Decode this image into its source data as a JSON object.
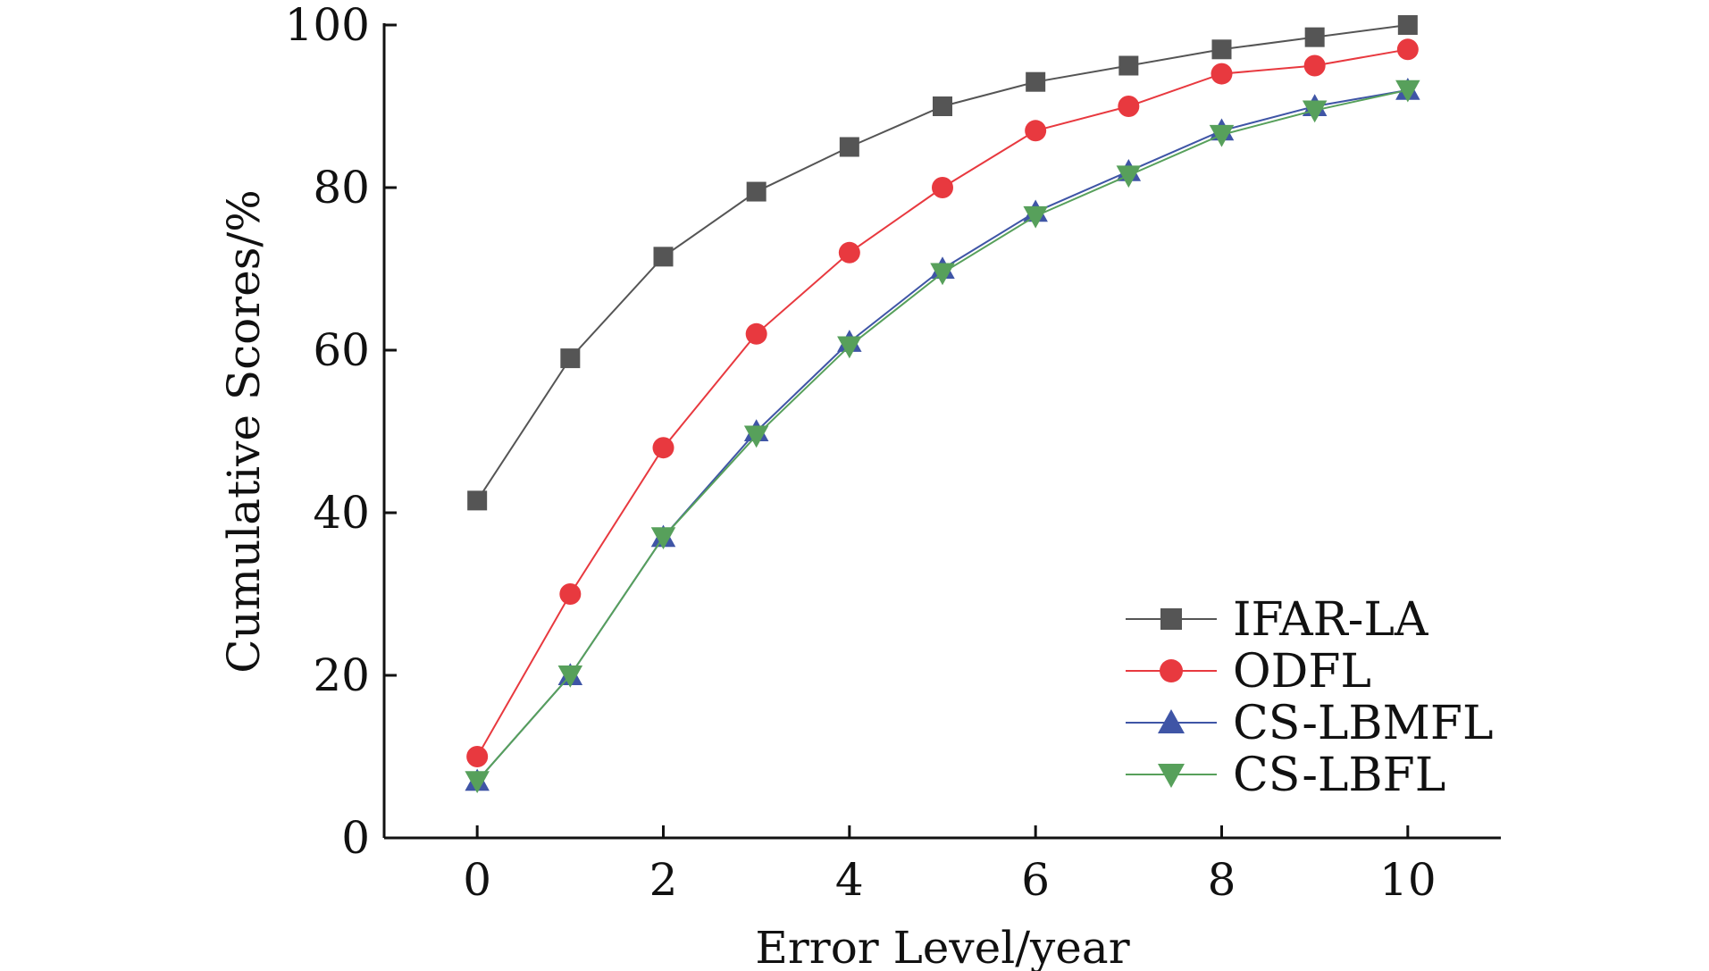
{
  "chart_data": {
    "type": "line",
    "title": "",
    "xlabel": "Error Level/year",
    "ylabel": "Cumulative Scores/%",
    "xlim": [
      -1,
      11
    ],
    "ylim": [
      0,
      100
    ],
    "xticks": [
      "0",
      "2",
      "4",
      "6",
      "8",
      "10"
    ],
    "yticks": [
      "0",
      "20",
      "40",
      "60",
      "80",
      "100"
    ],
    "x": [
      0,
      1,
      2,
      3,
      4,
      5,
      6,
      7,
      8,
      9,
      10
    ],
    "grid": false,
    "legend_position": "bottom-right",
    "series": [
      {
        "name": "IFAR-LA",
        "color": "#555555",
        "marker": "square",
        "values": [
          41.5,
          59,
          71.5,
          79.5,
          85,
          90,
          93,
          95,
          97,
          98.5,
          100
        ]
      },
      {
        "name": "ODFL",
        "color": "#e8393f",
        "marker": "circle",
        "values": [
          10,
          30,
          48,
          62,
          72,
          80,
          87,
          90,
          94,
          95,
          97
        ]
      },
      {
        "name": "CS-LBMFL",
        "color": "#3f55a6",
        "marker": "triangle-up",
        "values": [
          7,
          20,
          37,
          50,
          61,
          70,
          77,
          82,
          87,
          90,
          92
        ]
      },
      {
        "name": "CS-LBFL",
        "color": "#57a05b",
        "marker": "triangle-down",
        "values": [
          7,
          20,
          37,
          49.5,
          60.5,
          69.5,
          76.5,
          81.5,
          86.5,
          89.5,
          92
        ]
      }
    ]
  }
}
